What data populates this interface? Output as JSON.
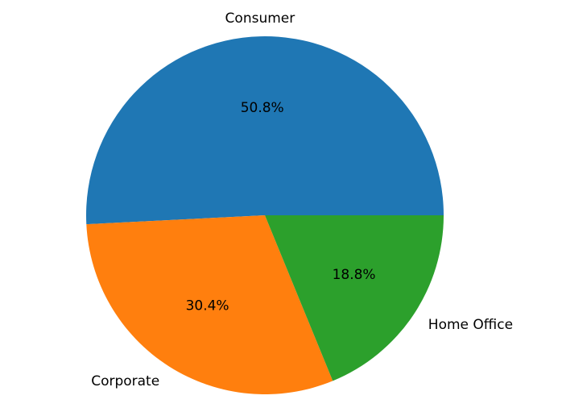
{
  "chart_data": {
    "type": "pie",
    "title": "",
    "categories": [
      "Consumer",
      "Corporate",
      "Home Office"
    ],
    "values": [
      50.8,
      30.4,
      18.8
    ],
    "value_labels": [
      "50.8%",
      "30.4%",
      "18.8%"
    ],
    "colors": [
      "#1f77b4",
      "#ff7f0e",
      "#2ca02c"
    ],
    "start_angle_deg": 0,
    "direction": "counterclockwise",
    "legend": "none"
  }
}
